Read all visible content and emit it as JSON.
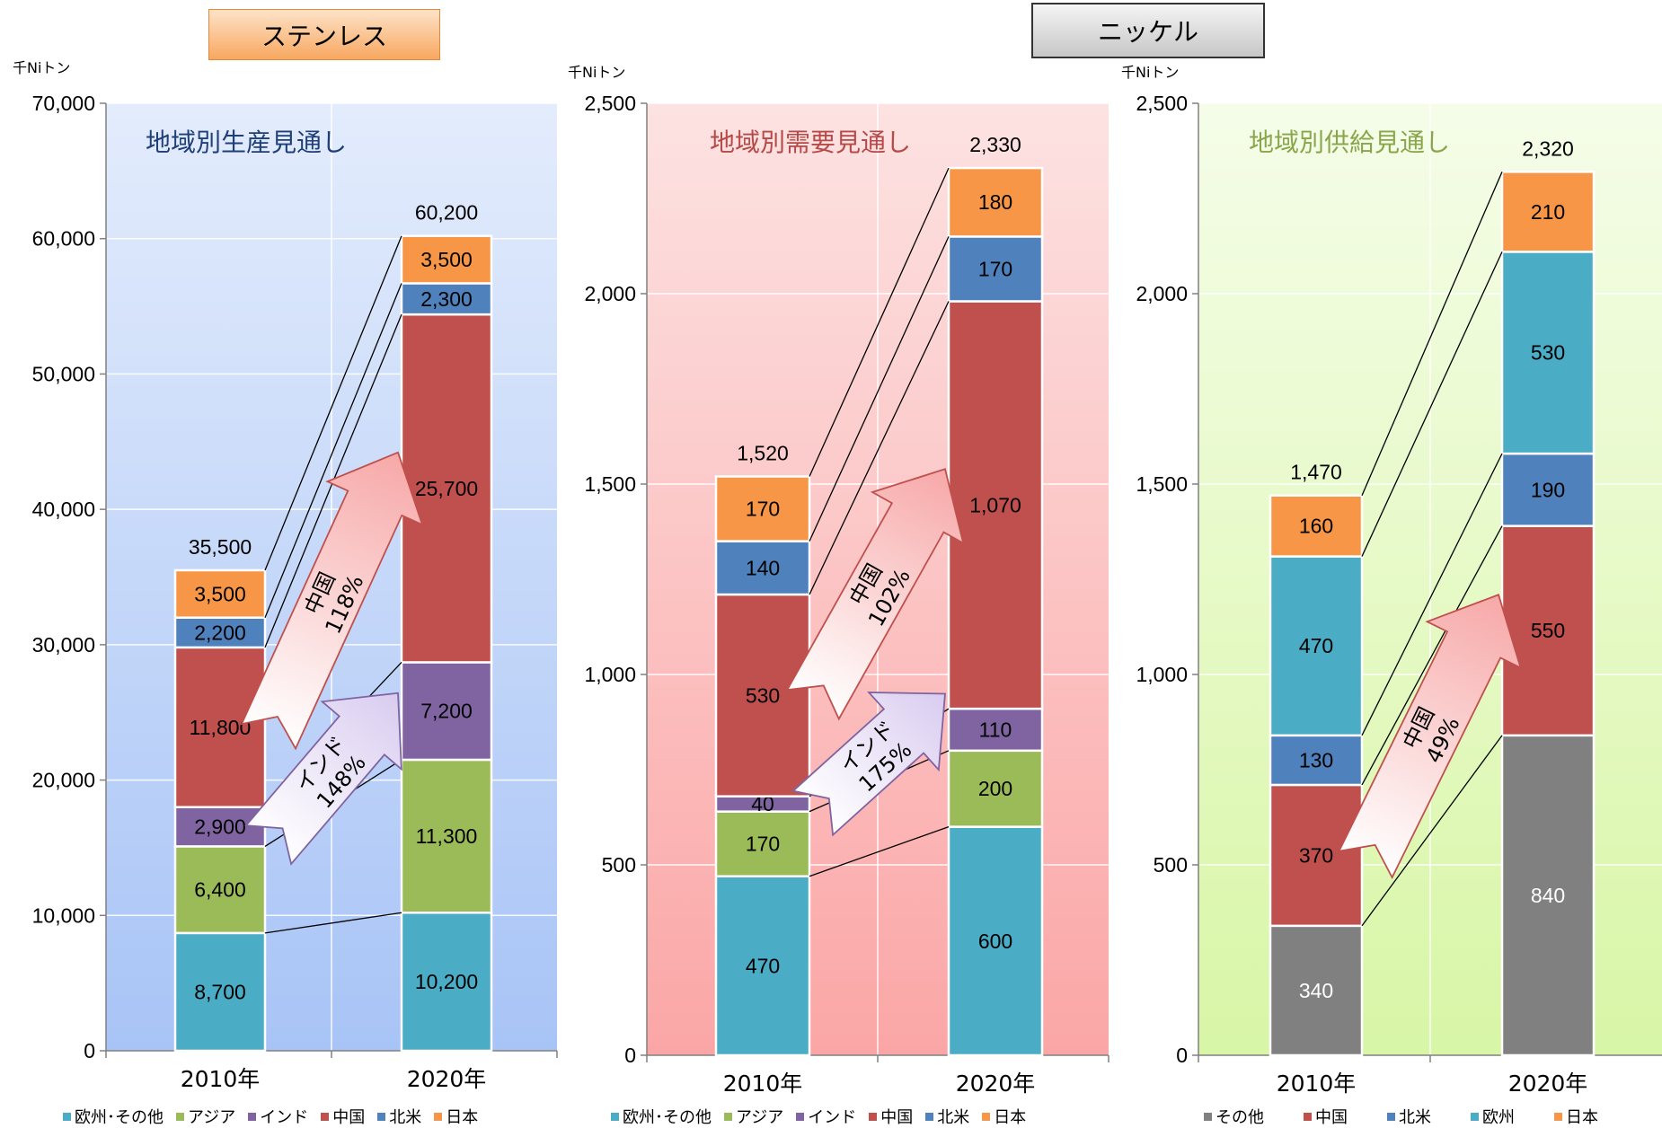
{
  "titles": {
    "stainless": "ステンレス",
    "nickel": "ニッケル"
  },
  "chart_data": [
    {
      "type": "bar",
      "stacked": true,
      "subtitle": "地域別生産見通し",
      "unit": "千Niトン",
      "ylim": [
        0,
        70000
      ],
      "yticks": [
        "0",
        "10,000",
        "20,000",
        "30,000",
        "40,000",
        "50,000",
        "60,000",
        "70,000"
      ],
      "categories": [
        "2010年",
        "2020年"
      ],
      "series": [
        {
          "name": "欧州･その他",
          "values": [
            8700,
            10200
          ],
          "labels": [
            "8,700",
            "10,200"
          ],
          "color": "#4bacc6"
        },
        {
          "name": "アジア",
          "values": [
            6400,
            11300
          ],
          "labels": [
            "6,400",
            "11,300"
          ],
          "color": "#9bbb59"
        },
        {
          "name": "インド",
          "values": [
            2900,
            7200
          ],
          "labels": [
            "2,900",
            "7,200"
          ],
          "color": "#8064a2"
        },
        {
          "name": "中国",
          "values": [
            11800,
            25700
          ],
          "labels": [
            "11,800",
            "25,700"
          ],
          "color": "#c0504d"
        },
        {
          "name": "北米",
          "values": [
            2200,
            2300
          ],
          "labels": [
            "2,200",
            "2,300"
          ],
          "color": "#4f81bd"
        },
        {
          "name": "日本",
          "values": [
            3500,
            3500
          ],
          "labels": [
            "3,500",
            "3,500"
          ],
          "color": "#f79646"
        }
      ],
      "totals": [
        "35,500",
        "60,200"
      ],
      "annotations": [
        {
          "text": "中国\n118%",
          "series": "中国"
        },
        {
          "text": "インド\n148%",
          "series": "インド"
        }
      ],
      "grid": true,
      "background": [
        "#e3ecfc",
        "#a8c4f6"
      ]
    },
    {
      "type": "bar",
      "stacked": true,
      "subtitle": "地域別需要見通し",
      "unit": "千Niトン",
      "ylim": [
        0,
        2500
      ],
      "yticks": [
        "0",
        "500",
        "1,000",
        "1,500",
        "2,000",
        "2,500"
      ],
      "categories": [
        "2010年",
        "2020年"
      ],
      "series": [
        {
          "name": "欧州･その他",
          "values": [
            470,
            600
          ],
          "labels": [
            "470",
            "600"
          ],
          "color": "#4bacc6"
        },
        {
          "name": "アジア",
          "values": [
            170,
            200
          ],
          "labels": [
            "170",
            "200"
          ],
          "color": "#9bbb59"
        },
        {
          "name": "インド",
          "values": [
            40,
            110
          ],
          "labels": [
            "40",
            "110"
          ],
          "color": "#8064a2"
        },
        {
          "name": "中国",
          "values": [
            530,
            1070
          ],
          "labels": [
            "530",
            "1,070"
          ],
          "color": "#c0504d"
        },
        {
          "name": "北米",
          "values": [
            140,
            170
          ],
          "labels": [
            "140",
            "170"
          ],
          "color": "#4f81bd"
        },
        {
          "name": "日本",
          "values": [
            170,
            180
          ],
          "labels": [
            "170",
            "180"
          ],
          "color": "#f79646"
        }
      ],
      "totals": [
        "1,520",
        "2,330"
      ],
      "annotations": [
        {
          "text": "中国\n102%",
          "series": "中国"
        },
        {
          "text": "インド\n175%",
          "series": "インド"
        }
      ],
      "grid": true,
      "background": [
        "#fde2e2",
        "#fba6a6"
      ]
    },
    {
      "type": "bar",
      "stacked": true,
      "subtitle": "地域別供給見通し",
      "unit": "千Niトン",
      "ylim": [
        0,
        2500
      ],
      "yticks": [
        "0",
        "500",
        "1,000",
        "1,500",
        "2,000",
        "2,500"
      ],
      "categories": [
        "2010年",
        "2020年"
      ],
      "series": [
        {
          "name": "その他",
          "values": [
            340,
            840
          ],
          "labels": [
            "340",
            "840"
          ],
          "color": "#808080"
        },
        {
          "name": "中国",
          "values": [
            370,
            550
          ],
          "labels": [
            "370",
            "550"
          ],
          "color": "#c0504d"
        },
        {
          "name": "北米",
          "values": [
            130,
            190
          ],
          "labels": [
            "130",
            "190"
          ],
          "color": "#4f81bd"
        },
        {
          "name": "欧州",
          "values": [
            470,
            530
          ],
          "labels": [
            "470",
            "530"
          ],
          "color": "#4bacc6"
        },
        {
          "name": "日本",
          "values": [
            160,
            210
          ],
          "labels": [
            "160",
            "210"
          ],
          "color": "#f79646"
        }
      ],
      "totals": [
        "1,470",
        "2,320"
      ],
      "annotations": [
        {
          "text": "中国\n49%",
          "series": "中国"
        }
      ],
      "grid": true,
      "background": [
        "#f5fde8",
        "#d8f6a6"
      ]
    }
  ]
}
